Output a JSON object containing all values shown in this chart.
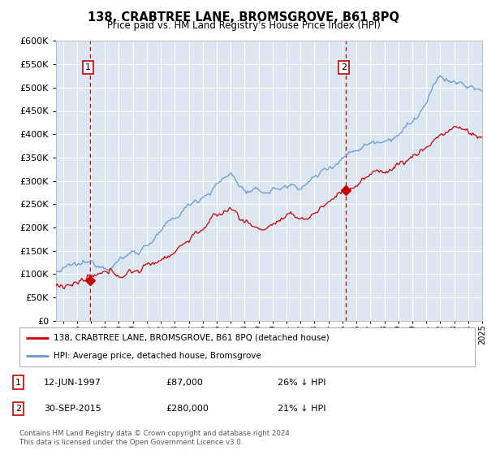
{
  "title1": "138, CRABTREE LANE, BROMSGROVE, B61 8PQ",
  "title2": "Price paid vs. HM Land Registry's House Price Index (HPI)",
  "legend_label1": "138, CRABTREE LANE, BROMSGROVE, B61 8PQ (detached house)",
  "legend_label2": "HPI: Average price, detached house, Bromsgrove",
  "marker1_date": "12-JUN-1997",
  "marker1_price": 87000,
  "marker1_label": "26% ↓ HPI",
  "marker2_date": "30-SEP-2015",
  "marker2_price": 280000,
  "marker2_label": "21% ↓ HPI",
  "footnote": "Contains HM Land Registry data © Crown copyright and database right 2024.\nThis data is licensed under the Open Government Licence v3.0.",
  "hpi_color": "#6699cc",
  "price_color": "#cc0000",
  "marker_color": "#cc0000",
  "dashed_color": "#cc0000",
  "background_color": "#dce6f1",
  "grid_color": "#ffffff",
  "ylim": [
    0,
    600000
  ],
  "yticks": [
    0,
    50000,
    100000,
    150000,
    200000,
    250000,
    300000,
    350000,
    400000,
    450000,
    500000,
    550000,
    600000
  ],
  "year_start": 1995,
  "year_end": 2025,
  "marker1_year": 1997.45,
  "marker2_year": 2015.75
}
